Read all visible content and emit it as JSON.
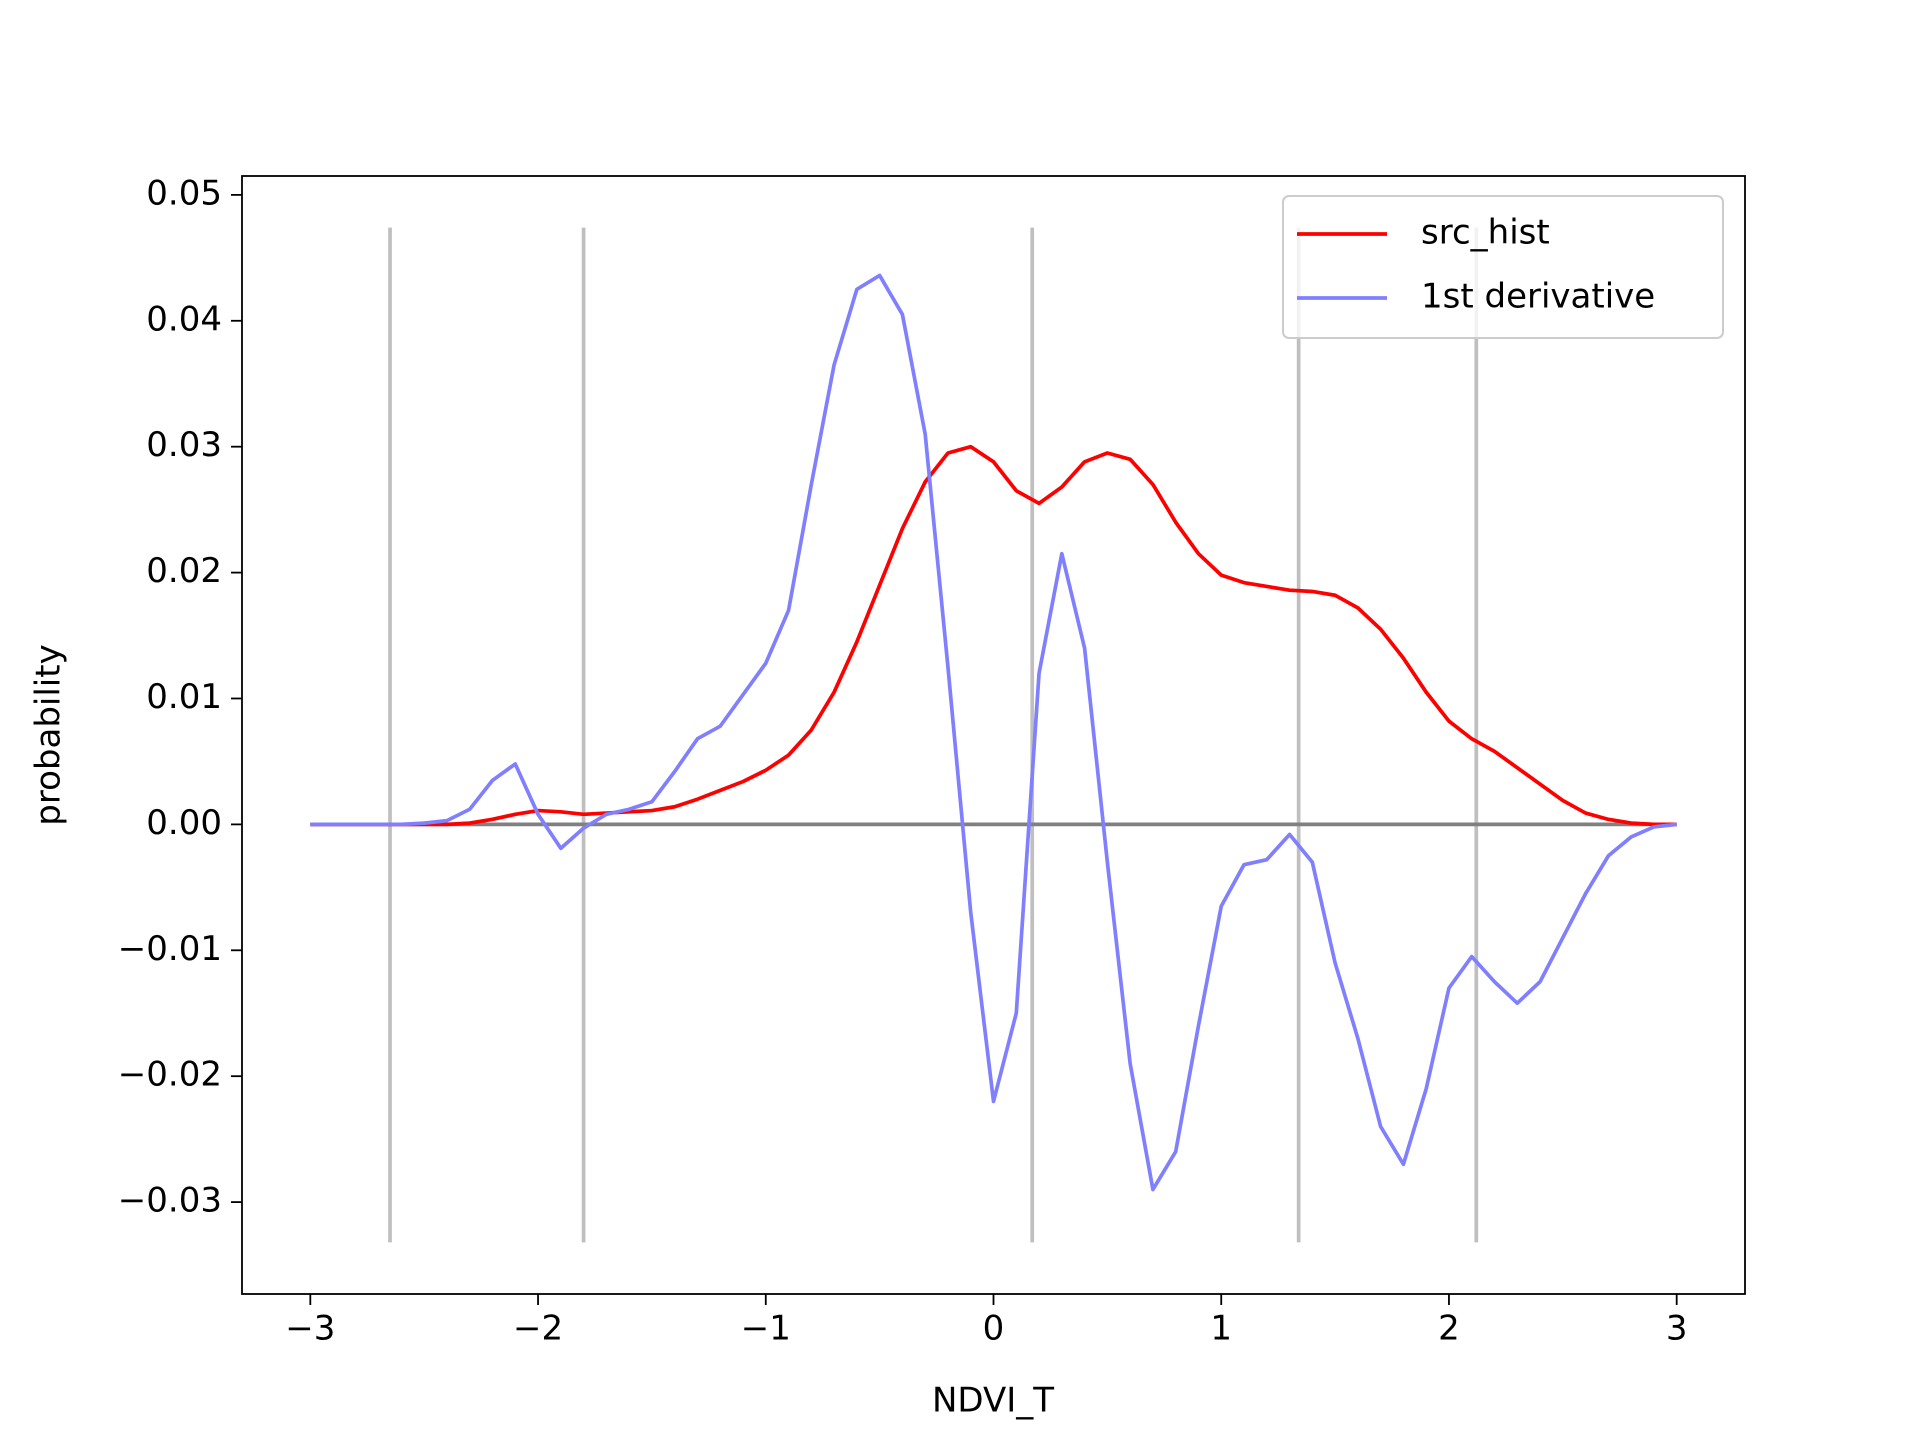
{
  "chart_data": {
    "type": "line",
    "xlabel": "NDVI_T",
    "ylabel": "probability",
    "xlim": [
      -3.3,
      3.3
    ],
    "ylim": [
      -0.0373,
      0.0515
    ],
    "xticks": [
      {
        "value": -3,
        "label": "−3"
      },
      {
        "value": -2,
        "label": "−2"
      },
      {
        "value": -1,
        "label": "−1"
      },
      0,
      1,
      2,
      3
    ],
    "yticks": [
      {
        "value": -0.03,
        "label": "−0.03"
      },
      {
        "value": -0.02,
        "label": "−0.02"
      },
      {
        "value": -0.01,
        "label": "−0.01"
      },
      {
        "value": 0,
        "label": "0.00"
      },
      0.01,
      0.02,
      0.03,
      0.04,
      0.05
    ],
    "legend": "upper right",
    "x": [
      -3.0,
      -2.9,
      -2.8,
      -2.7,
      -2.6,
      -2.5,
      -2.4,
      -2.3,
      -2.2,
      -2.1,
      -2.0,
      -1.9,
      -1.8,
      -1.7,
      -1.6,
      -1.5,
      -1.4,
      -1.3,
      -1.2,
      -1.1,
      -1.0,
      -0.9,
      -0.8,
      -0.7,
      -0.6,
      -0.5,
      -0.4,
      -0.3,
      -0.2,
      -0.1,
      0.0,
      0.1,
      0.2,
      0.3,
      0.4,
      0.5,
      0.6,
      0.7,
      0.8,
      0.9,
      1.0,
      1.1,
      1.2,
      1.3,
      1.4,
      1.5,
      1.6,
      1.7,
      1.8,
      1.9,
      2.0,
      2.1,
      2.2,
      2.3,
      2.4,
      2.5,
      2.6,
      2.7,
      2.8,
      2.9,
      3.0
    ],
    "series": [
      {
        "name": "src_hist",
        "color": "#ff0000",
        "values": [
          0,
          0,
          0,
          0,
          0,
          0,
          0,
          0.0001,
          0.0004,
          0.0008,
          0.0011,
          0.001,
          0.0008,
          0.0009,
          0.001,
          0.0011,
          0.0014,
          0.002,
          0.0027,
          0.0034,
          0.0043,
          0.0055,
          0.0075,
          0.0105,
          0.0145,
          0.019,
          0.0235,
          0.0272,
          0.0295,
          0.03,
          0.0288,
          0.0265,
          0.0255,
          0.0268,
          0.0288,
          0.0295,
          0.029,
          0.027,
          0.024,
          0.0215,
          0.0198,
          0.0192,
          0.0189,
          0.0186,
          0.0185,
          0.0182,
          0.0172,
          0.0155,
          0.0132,
          0.0105,
          0.0082,
          0.0068,
          0.0058,
          0.0045,
          0.0032,
          0.0019,
          0.0009,
          0.0004,
          0.0001,
          0,
          0
        ]
      },
      {
        "name": "1st derivative",
        "color": "#8080ff",
        "values": [
          0,
          0,
          0,
          0,
          0,
          0.0001,
          0.0003,
          0.0012,
          0.0035,
          0.0048,
          0.0008,
          -0.0019,
          -0.0003,
          0.0008,
          0.0012,
          0.0018,
          0.0042,
          0.0068,
          0.0078,
          0.0103,
          0.0128,
          0.017,
          0.027,
          0.0365,
          0.0425,
          0.0436,
          0.0405,
          0.031,
          0.0125,
          -0.007,
          -0.022,
          -0.015,
          0.012,
          0.0215,
          0.014,
          -0.003,
          -0.019,
          -0.029,
          -0.026,
          -0.016,
          -0.0065,
          -0.0032,
          -0.0028,
          -0.0008,
          -0.003,
          -0.011,
          -0.017,
          -0.024,
          -0.027,
          -0.021,
          -0.013,
          -0.0105,
          -0.0125,
          -0.0142,
          -0.0125,
          -0.009,
          -0.0055,
          -0.0025,
          -0.001,
          -0.0002,
          0
        ]
      }
    ],
    "hline": {
      "y": 0,
      "xmin": -3,
      "xmax": 3,
      "color": "#808080"
    },
    "vlines": {
      "x": [
        -2.65,
        -1.8,
        0.17,
        1.34,
        2.12
      ],
      "ymin": -0.0332,
      "ymax": 0.0474,
      "color": "#bfbfbf"
    }
  }
}
